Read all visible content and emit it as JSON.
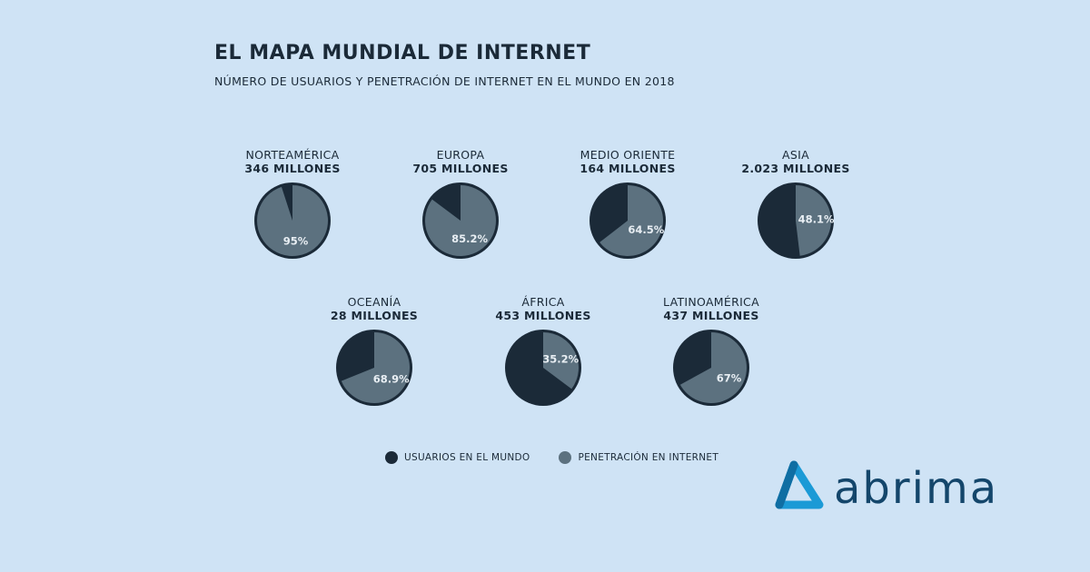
{
  "header": {
    "title": "EL MAPA MUNDIAL DE INTERNET",
    "subtitle": "NÚMERO DE USUARIOS Y PENETRACIÓN DE INTERNET EN EL MUNDO EN 2018"
  },
  "colors": {
    "background": "#cfe3f5",
    "users": "#1b2a38",
    "penetration": "#5c717f",
    "brand": "#1b9ad6"
  },
  "chart_data": {
    "type": "pie",
    "title": "EL MAPA MUNDIAL DE INTERNET",
    "subtitle": "NÚMERO DE USUARIOS Y PENETRACIÓN DE INTERNET EN EL MUNDO EN 2018",
    "legend": [
      "USUARIOS EN EL MUNDO",
      "PENETRACIÓN EN INTERNET"
    ],
    "legend_position": "bottom",
    "regions": [
      {
        "name": "NORTEAMÉRICA",
        "users_label": "346 MILLONES",
        "penetration": 95,
        "penetration_label": "95%"
      },
      {
        "name": "EUROPA",
        "users_label": "705 MILLONES",
        "penetration": 85.2,
        "penetration_label": "85.2%"
      },
      {
        "name": "MEDIO ORIENTE",
        "users_label": "164 MILLONES",
        "penetration": 64.5,
        "penetration_label": "64.5%"
      },
      {
        "name": "ASIA",
        "users_label": "2.023 MILLONES",
        "penetration": 48.1,
        "penetration_label": "48.1%"
      },
      {
        "name": "OCEANÍA",
        "users_label": "28 MILLONES",
        "penetration": 68.9,
        "penetration_label": "68.9%"
      },
      {
        "name": "ÁFRICA",
        "users_label": "453 MILLONES",
        "penetration": 35.2,
        "penetration_label": "35.2%"
      },
      {
        "name": "LATINOAMÉRICA",
        "users_label": "437 MILLONES",
        "penetration": 67,
        "penetration_label": "67%"
      }
    ]
  },
  "legend": {
    "users_label": "USUARIOS EN EL MUNDO",
    "penetration_label": "PENETRACIÓN EN INTERNET"
  },
  "logo": {
    "text": "abrima"
  }
}
